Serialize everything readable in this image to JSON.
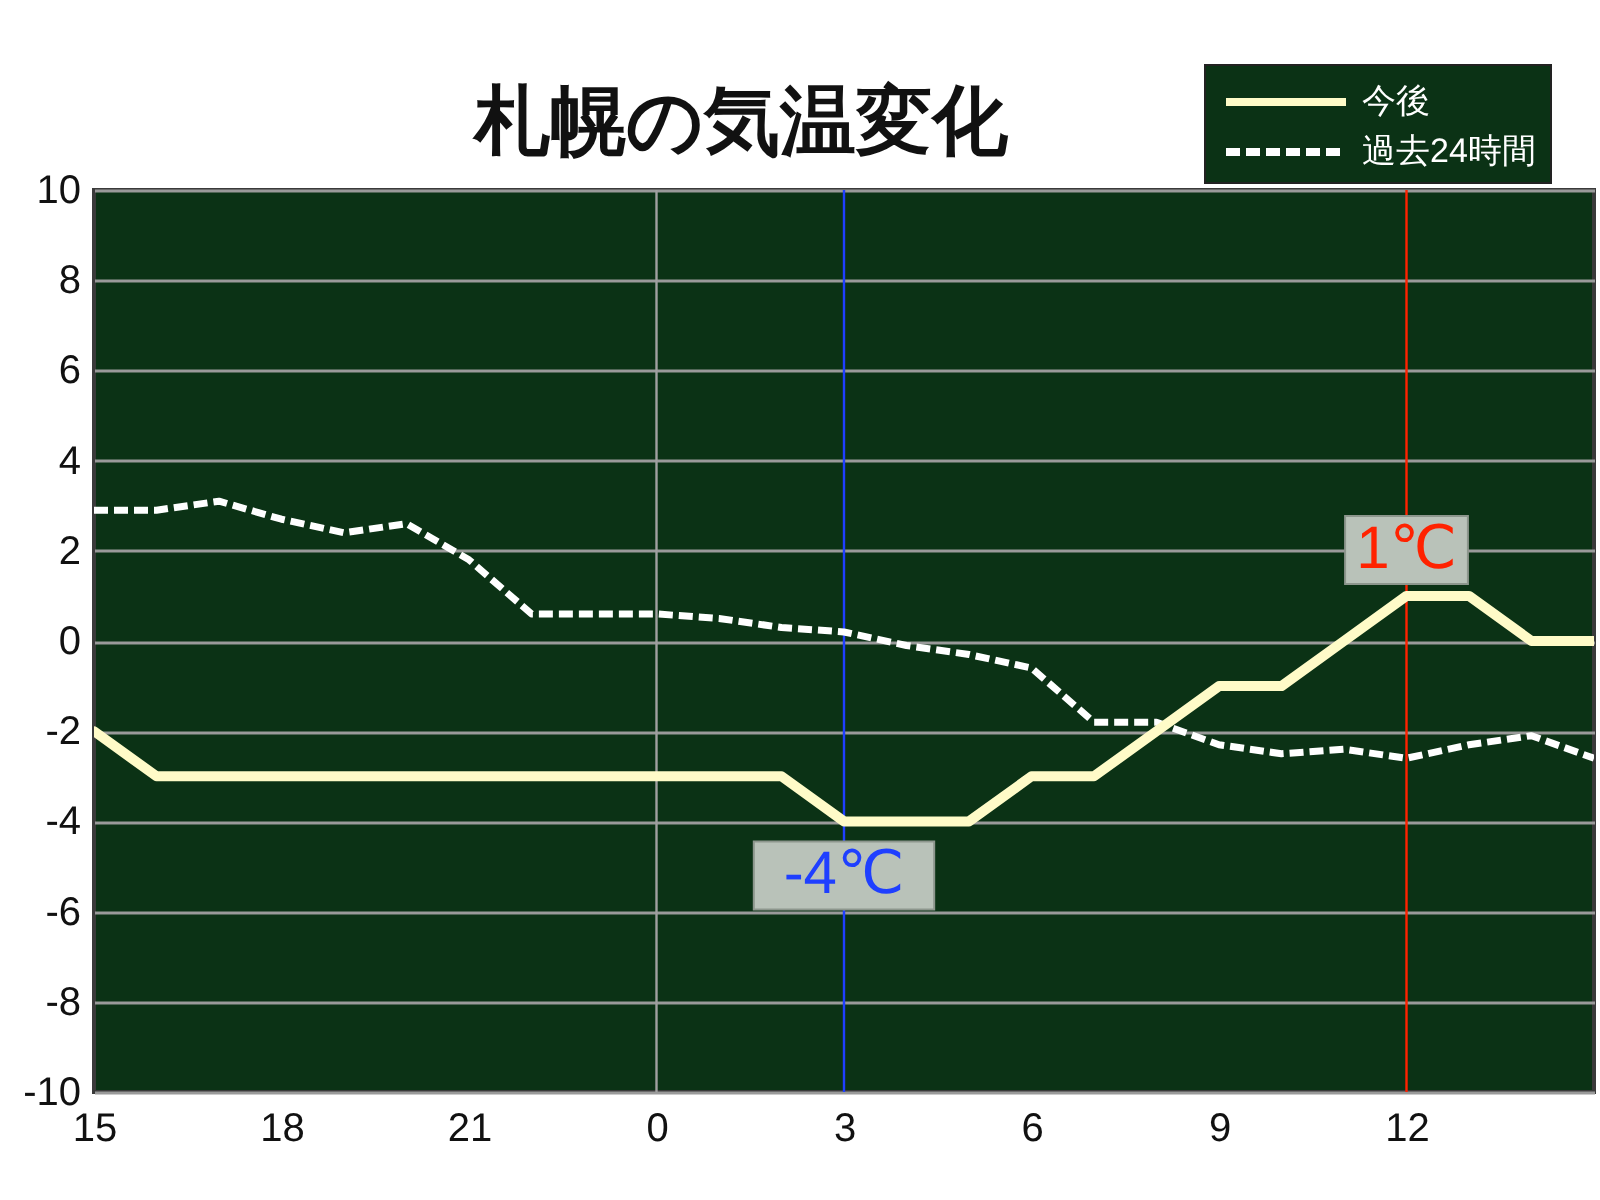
{
  "chart_data": {
    "type": "line",
    "title": "札幌の気温変化",
    "categories": [
      "15",
      null,
      null,
      "18",
      null,
      null,
      "21",
      null,
      null,
      "0",
      null,
      null,
      "3",
      null,
      null,
      "6",
      null,
      null,
      "9",
      null,
      null,
      "12",
      null,
      null,
      null
    ],
    "series": [
      {
        "name": "今後",
        "color": "#fffbc8",
        "line_style": "solid",
        "values": [
          -2,
          -3,
          -3,
          -3,
          -3,
          -3,
          -3,
          -3,
          -3,
          -3,
          -3,
          -3,
          -4,
          -4,
          -4,
          -3,
          -3,
          -2,
          -1,
          -1,
          0,
          1,
          1,
          0,
          0
        ]
      },
      {
        "name": "過去24時間",
        "color": "#ffffff",
        "line_style": "dashed",
        "values": [
          2.9,
          2.9,
          3.1,
          2.7,
          2.4,
          2.6,
          1.8,
          0.6,
          0.6,
          0.6,
          0.5,
          0.3,
          0.2,
          -0.1,
          -0.3,
          -0.6,
          -1.8,
          -1.8,
          -2.3,
          -2.5,
          -2.4,
          -2.6,
          -2.3,
          -2.1,
          -2.6
        ]
      }
    ],
    "ylim": [
      -10,
      10
    ],
    "yticks": [
      -10,
      -8,
      -6,
      -4,
      -2,
      0,
      2,
      4,
      6,
      8,
      10
    ],
    "grid": "y",
    "legend": "top right",
    "ref_lines": [
      {
        "axis": "x",
        "value": "0",
        "color": "#a0a0a0"
      },
      {
        "axis": "x",
        "value": "3",
        "color": "#1f3fff"
      },
      {
        "axis": "x",
        "value": "12",
        "color": "#ff2200"
      }
    ],
    "annotations": [
      {
        "text": "1℃",
        "x": "12",
        "y": 1
      },
      {
        "text": "-4℃",
        "x": "3",
        "y": -4
      }
    ]
  }
}
